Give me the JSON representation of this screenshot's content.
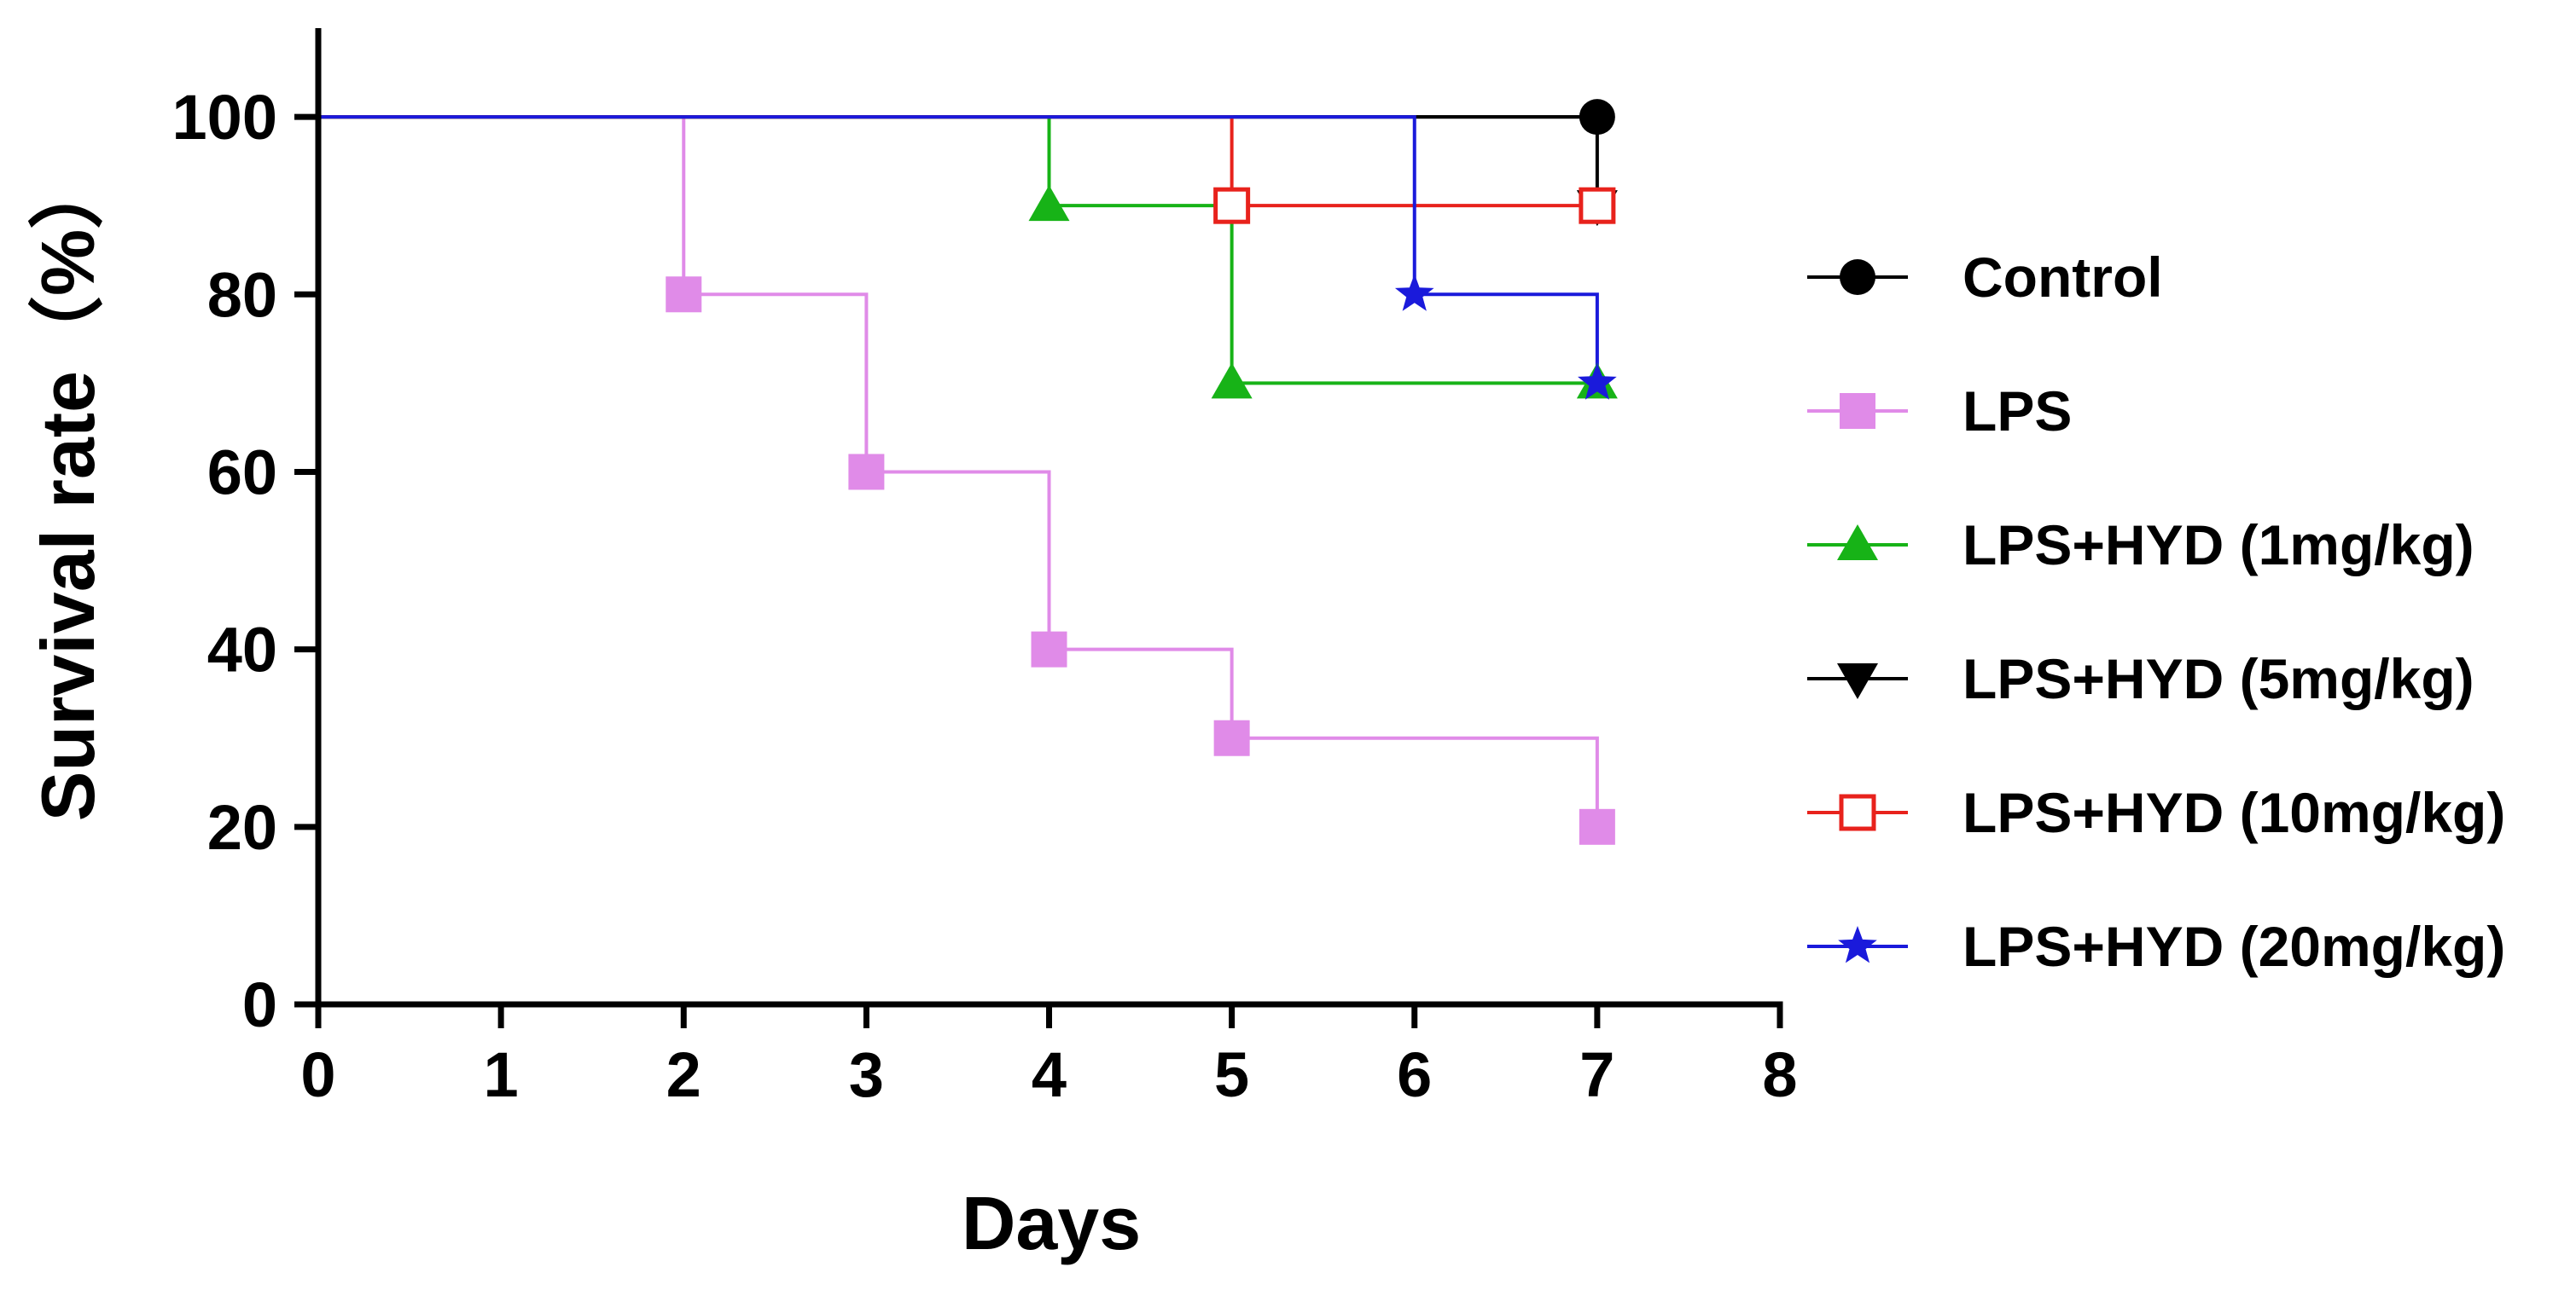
{
  "chart_data": {
    "type": "line",
    "style": "step",
    "xlabel": "Days",
    "ylabel": "Survival rate（%）",
    "xlim": [
      0,
      8
    ],
    "ylim": [
      0,
      110
    ],
    "xticks": [
      "0",
      "1",
      "2",
      "3",
      "4",
      "5",
      "6",
      "7",
      "8"
    ],
    "yticks": [
      "0",
      "20",
      "40",
      "60",
      "80",
      "100"
    ],
    "grid": false,
    "legend_position": "right",
    "series": [
      {
        "name": "Control",
        "color": "#000000",
        "marker": "circle",
        "filled": true,
        "steps": [
          [
            0,
            100
          ],
          [
            7,
            100
          ]
        ],
        "markers": [
          [
            7,
            100
          ]
        ]
      },
      {
        "name": "LPS",
        "color": "#e08be8",
        "marker": "square",
        "filled": true,
        "steps": [
          [
            0,
            100
          ],
          [
            2,
            80
          ],
          [
            3,
            60
          ],
          [
            4,
            40
          ],
          [
            5,
            30
          ],
          [
            7,
            20
          ]
        ],
        "markers": [
          [
            2,
            80
          ],
          [
            3,
            60
          ],
          [
            4,
            40
          ],
          [
            5,
            30
          ],
          [
            7,
            20
          ]
        ]
      },
      {
        "name": "LPS+HYD (1mg/kg)",
        "color": "#17b317",
        "marker": "triangle-up",
        "filled": true,
        "steps": [
          [
            0,
            100
          ],
          [
            4,
            90
          ],
          [
            5,
            70
          ],
          [
            7,
            70
          ]
        ],
        "markers": [
          [
            4,
            90
          ],
          [
            5,
            70
          ],
          [
            7,
            70
          ]
        ]
      },
      {
        "name": "LPS+HYD (5mg/kg)",
        "color": "#000000",
        "marker": "triangle-down",
        "filled": true,
        "steps": [
          [
            0,
            100
          ],
          [
            7,
            90
          ]
        ],
        "markers": [
          [
            7,
            90
          ]
        ]
      },
      {
        "name": "LPS+HYD (10mg/kg)",
        "color": "#e8221c",
        "marker": "square",
        "filled": false,
        "steps": [
          [
            0,
            100
          ],
          [
            5,
            90
          ],
          [
            7,
            90
          ]
        ],
        "markers": [
          [
            5,
            90
          ],
          [
            7,
            90
          ]
        ]
      },
      {
        "name": "LPS+HYD (20mg/kg)",
        "color": "#1a1adb",
        "marker": "star",
        "filled": true,
        "steps": [
          [
            0,
            100
          ],
          [
            6,
            80
          ],
          [
            7,
            70
          ]
        ],
        "markers": [
          [
            6,
            80
          ],
          [
            7,
            70
          ]
        ]
      }
    ]
  }
}
